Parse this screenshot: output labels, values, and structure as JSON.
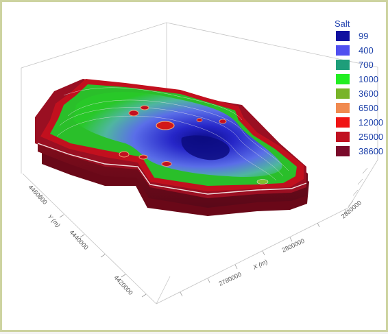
{
  "chart_data": {
    "type": "3d-surface",
    "title": "",
    "legend": {
      "title": "Salt",
      "placement": "top-right",
      "entries": [
        {
          "label": "99",
          "color": "#1010a0"
        },
        {
          "label": "400",
          "color": "#5050f0"
        },
        {
          "label": "700",
          "color": "#1e9e7a"
        },
        {
          "label": "1000",
          "color": "#22ee22"
        },
        {
          "label": "3600",
          "color": "#78b428"
        },
        {
          "label": "6500",
          "color": "#f08a50"
        },
        {
          "label": "12000",
          "color": "#f01414"
        },
        {
          "label": "25000",
          "color": "#c01020"
        },
        {
          "label": "38600",
          "color": "#7a0a2a"
        }
      ]
    },
    "axes": {
      "x": {
        "label": "X (m)",
        "ticks": [
          "2780000",
          "2800000",
          "2820000"
        ]
      },
      "y": {
        "label": "Y (m)",
        "ticks": [
          "4460000",
          "4440000",
          "4420000"
        ]
      }
    },
    "grid": true,
    "box": true
  }
}
